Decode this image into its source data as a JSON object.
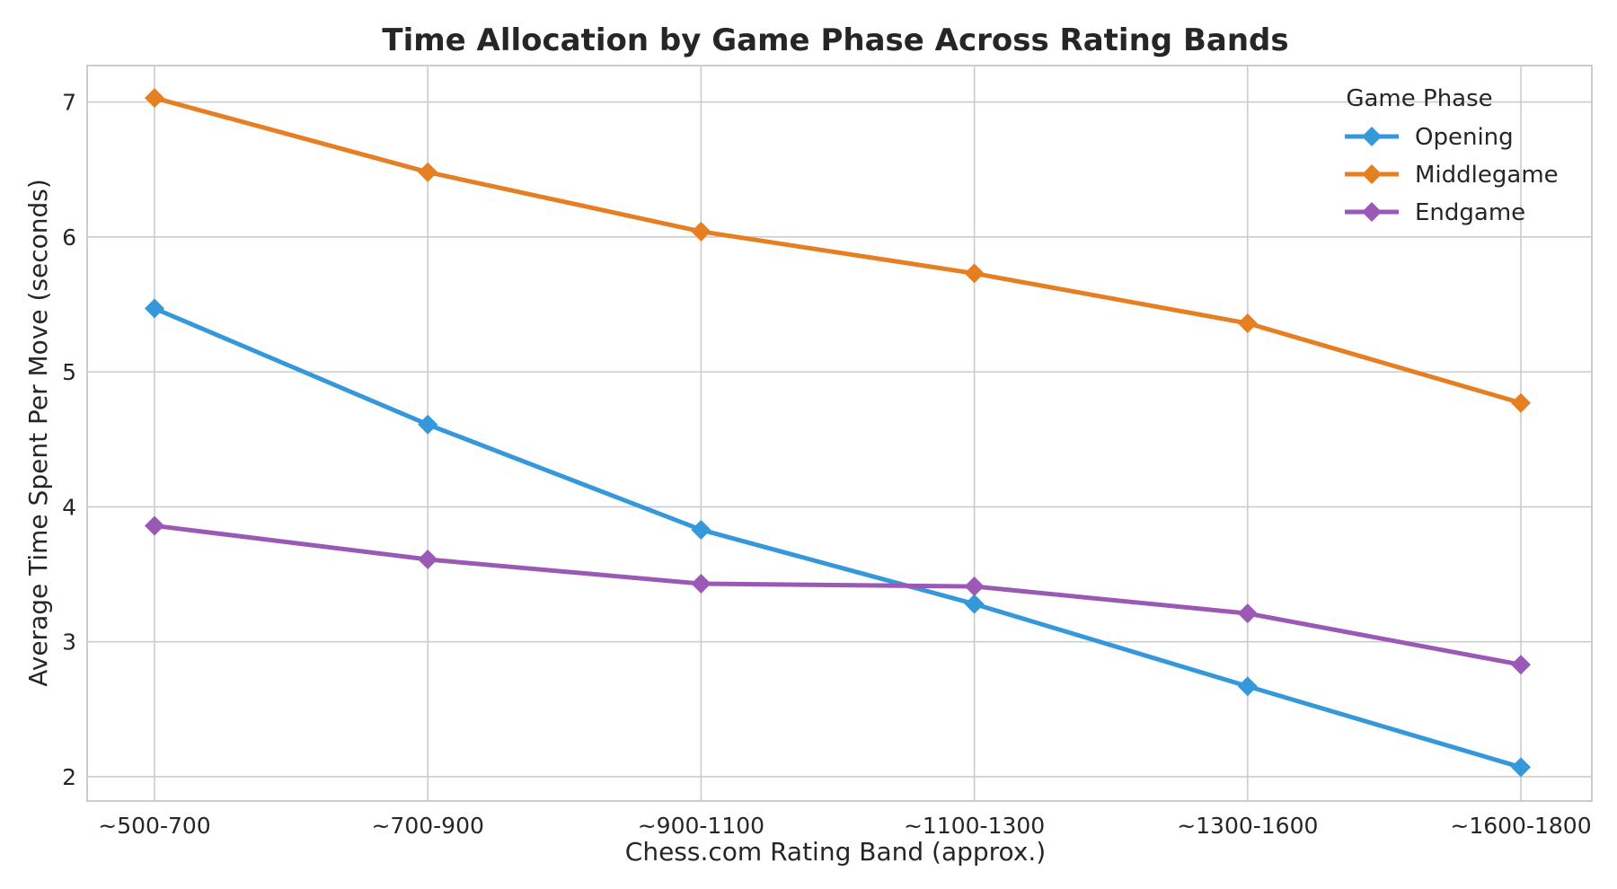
{
  "chart_data": {
    "type": "line",
    "title": "Time Allocation by Game Phase Across Rating Bands",
    "xlabel": "Chess.com Rating Band (approx.)",
    "ylabel": "Average Time Spent Per Move (seconds)",
    "categories": [
      "~500-700",
      "~700-900",
      "~900-1100",
      "~1100-1300",
      "~1300-1600",
      "~1600-1800"
    ],
    "ylim": [
      1.82,
      7.27
    ],
    "yticks": [
      2,
      3,
      4,
      5,
      6,
      7
    ],
    "grid": true,
    "legend": {
      "title": "Game Phase",
      "placement": "top-right"
    },
    "series": [
      {
        "name": "Opening",
        "color": "#3498db",
        "marker": "diamond",
        "values": [
          5.47,
          4.61,
          3.83,
          3.28,
          2.67,
          2.07
        ]
      },
      {
        "name": "Middlegame",
        "color": "#e67e22",
        "marker": "diamond",
        "values": [
          7.03,
          6.48,
          6.04,
          5.73,
          5.36,
          4.77
        ]
      },
      {
        "name": "Endgame",
        "color": "#9b59b6",
        "marker": "diamond",
        "values": [
          3.86,
          3.61,
          3.43,
          3.41,
          3.21,
          2.83
        ]
      }
    ]
  }
}
